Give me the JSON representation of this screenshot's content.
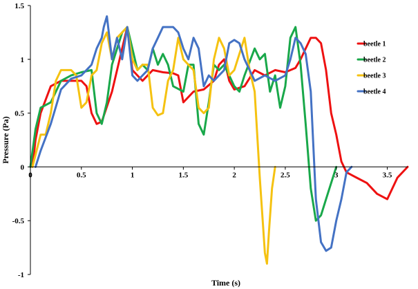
{
  "chart_data": {
    "type": "line",
    "title": "",
    "xlabel": "Time (s)",
    "ylabel": "Pressure (Pa)",
    "xlim": [
      0,
      3.7
    ],
    "ylim": [
      -1,
      1.5
    ],
    "x_ticks": [
      0,
      0.5,
      1,
      1.5,
      2,
      2.5,
      3,
      3.5
    ],
    "y_ticks": [
      -1,
      -0.5,
      0,
      0.5,
      1,
      1.5
    ],
    "x_tick_labels": [
      "0",
      "0.5",
      "1",
      "1.5",
      "2",
      "2.5",
      "3",
      "3.5"
    ],
    "y_tick_labels": [
      "-1",
      "-0.5",
      "0",
      "0.5",
      "1",
      "1.5"
    ],
    "grid": false,
    "legend_position": "right",
    "series": [
      {
        "name": "beetle 1",
        "color": "#ee1111",
        "points": [
          [
            0.02,
            0
          ],
          [
            0.05,
            0.25
          ],
          [
            0.1,
            0.5
          ],
          [
            0.2,
            0.75
          ],
          [
            0.3,
            0.8
          ],
          [
            0.5,
            0.8
          ],
          [
            0.55,
            0.75
          ],
          [
            0.6,
            0.5
          ],
          [
            0.65,
            0.4
          ],
          [
            0.7,
            0.42
          ],
          [
            0.8,
            0.7
          ],
          [
            0.9,
            1.1
          ],
          [
            0.95,
            1.3
          ],
          [
            1.0,
            0.9
          ],
          [
            1.1,
            0.8
          ],
          [
            1.2,
            0.9
          ],
          [
            1.3,
            0.88
          ],
          [
            1.4,
            0.87
          ],
          [
            1.45,
            0.85
          ],
          [
            1.5,
            0.6
          ],
          [
            1.6,
            0.7
          ],
          [
            1.7,
            0.72
          ],
          [
            1.8,
            0.8
          ],
          [
            1.85,
            0.95
          ],
          [
            1.9,
            1.0
          ],
          [
            1.95,
            0.8
          ],
          [
            2.0,
            0.72
          ],
          [
            2.1,
            0.75
          ],
          [
            2.2,
            0.9
          ],
          [
            2.3,
            0.85
          ],
          [
            2.4,
            0.9
          ],
          [
            2.5,
            0.88
          ],
          [
            2.6,
            0.92
          ],
          [
            2.65,
            1.0
          ],
          [
            2.7,
            1.1
          ],
          [
            2.75,
            1.2
          ],
          [
            2.8,
            1.2
          ],
          [
            2.85,
            1.15
          ],
          [
            2.9,
            0.9
          ],
          [
            2.95,
            0.5
          ],
          [
            3.0,
            0.3
          ],
          [
            3.05,
            0.05
          ],
          [
            3.1,
            -0.05
          ],
          [
            3.2,
            -0.1
          ],
          [
            3.3,
            -0.15
          ],
          [
            3.4,
            -0.25
          ],
          [
            3.5,
            -0.3
          ],
          [
            3.55,
            -0.2
          ],
          [
            3.6,
            -0.1
          ],
          [
            3.7,
            0
          ]
        ]
      },
      {
        "name": "beetle 2",
        "color": "#19a84a",
        "points": [
          [
            0,
            0
          ],
          [
            0.05,
            0.35
          ],
          [
            0.1,
            0.55
          ],
          [
            0.2,
            0.6
          ],
          [
            0.25,
            0.7
          ],
          [
            0.3,
            0.8
          ],
          [
            0.4,
            0.85
          ],
          [
            0.5,
            0.88
          ],
          [
            0.6,
            0.9
          ],
          [
            0.65,
            0.5
          ],
          [
            0.7,
            0.4
          ],
          [
            0.75,
            0.6
          ],
          [
            0.8,
            0.95
          ],
          [
            0.9,
            1.25
          ],
          [
            0.95,
            1.3
          ],
          [
            1.0,
            1.1
          ],
          [
            1.05,
            0.9
          ],
          [
            1.1,
            0.95
          ],
          [
            1.15,
            0.9
          ],
          [
            1.2,
            1.1
          ],
          [
            1.25,
            0.95
          ],
          [
            1.3,
            1.05
          ],
          [
            1.35,
            0.95
          ],
          [
            1.4,
            0.75
          ],
          [
            1.5,
            0.7
          ],
          [
            1.55,
            0.95
          ],
          [
            1.6,
            0.95
          ],
          [
            1.65,
            0.4
          ],
          [
            1.7,
            0.3
          ],
          [
            1.75,
            0.6
          ],
          [
            1.8,
            0.95
          ],
          [
            1.85,
            0.9
          ],
          [
            1.9,
            0.95
          ],
          [
            1.95,
            0.85
          ],
          [
            2.0,
            0.75
          ],
          [
            2.05,
            0.7
          ],
          [
            2.1,
            0.85
          ],
          [
            2.2,
            1.1
          ],
          [
            2.25,
            1.0
          ],
          [
            2.3,
            1.05
          ],
          [
            2.35,
            0.7
          ],
          [
            2.4,
            0.85
          ],
          [
            2.45,
            0.55
          ],
          [
            2.5,
            0.75
          ],
          [
            2.55,
            1.2
          ],
          [
            2.6,
            1.3
          ],
          [
            2.65,
            0.95
          ],
          [
            2.7,
            0.4
          ],
          [
            2.75,
            -0.2
          ],
          [
            2.8,
            -0.5
          ],
          [
            2.85,
            -0.45
          ],
          [
            2.9,
            -0.3
          ],
          [
            2.95,
            -0.15
          ],
          [
            3.0,
            0
          ]
        ]
      },
      {
        "name": "beetle 3",
        "color": "#f5c211",
        "points": [
          [
            0.02,
            0
          ],
          [
            0.1,
            0.3
          ],
          [
            0.15,
            0.3
          ],
          [
            0.2,
            0.5
          ],
          [
            0.25,
            0.8
          ],
          [
            0.3,
            0.9
          ],
          [
            0.4,
            0.9
          ],
          [
            0.45,
            0.85
          ],
          [
            0.5,
            0.55
          ],
          [
            0.55,
            0.6
          ],
          [
            0.6,
            0.85
          ],
          [
            0.65,
            0.9
          ],
          [
            0.7,
            1.15
          ],
          [
            0.75,
            1.25
          ],
          [
            0.8,
            1.0
          ],
          [
            0.85,
            1.2
          ],
          [
            0.9,
            1.25
          ],
          [
            0.95,
            1.3
          ],
          [
            1.0,
            1.0
          ],
          [
            1.05,
            0.9
          ],
          [
            1.1,
            0.95
          ],
          [
            1.15,
            0.95
          ],
          [
            1.2,
            0.55
          ],
          [
            1.25,
            0.48
          ],
          [
            1.3,
            0.5
          ],
          [
            1.35,
            0.8
          ],
          [
            1.4,
            0.9
          ],
          [
            1.45,
            1.2
          ],
          [
            1.5,
            1.0
          ],
          [
            1.55,
            0.95
          ],
          [
            1.6,
            0.9
          ],
          [
            1.65,
            0.55
          ],
          [
            1.7,
            0.5
          ],
          [
            1.75,
            0.55
          ],
          [
            1.8,
            1.0
          ],
          [
            1.85,
            1.2
          ],
          [
            1.9,
            1.1
          ],
          [
            1.95,
            0.85
          ],
          [
            2.0,
            0.9
          ],
          [
            2.05,
            1.05
          ],
          [
            2.1,
            1.2
          ],
          [
            2.15,
            0.9
          ],
          [
            2.2,
            0.7
          ],
          [
            2.25,
            -0.1
          ],
          [
            2.3,
            -0.8
          ],
          [
            2.32,
            -0.9
          ],
          [
            2.34,
            -0.6
          ],
          [
            2.37,
            -0.2
          ],
          [
            2.4,
            0
          ]
        ]
      },
      {
        "name": "beetle 4",
        "color": "#4472c4",
        "points": [
          [
            0.05,
            0
          ],
          [
            0.1,
            0.15
          ],
          [
            0.2,
            0.4
          ],
          [
            0.3,
            0.72
          ],
          [
            0.4,
            0.82
          ],
          [
            0.5,
            0.85
          ],
          [
            0.6,
            0.95
          ],
          [
            0.65,
            1.1
          ],
          [
            0.7,
            1.2
          ],
          [
            0.72,
            1.3
          ],
          [
            0.75,
            1.4
          ],
          [
            0.8,
            1.0
          ],
          [
            0.85,
            1.2
          ],
          [
            0.9,
            1.0
          ],
          [
            0.95,
            1.3
          ],
          [
            1.0,
            0.85
          ],
          [
            1.05,
            0.8
          ],
          [
            1.1,
            0.85
          ],
          [
            1.15,
            0.9
          ],
          [
            1.2,
            1.1
          ],
          [
            1.25,
            1.2
          ],
          [
            1.3,
            1.3
          ],
          [
            1.4,
            1.3
          ],
          [
            1.45,
            1.25
          ],
          [
            1.5,
            1.1
          ],
          [
            1.55,
            1.0
          ],
          [
            1.6,
            1.2
          ],
          [
            1.65,
            1.1
          ],
          [
            1.7,
            0.75
          ],
          [
            1.75,
            0.85
          ],
          [
            1.8,
            0.8
          ],
          [
            1.85,
            0.85
          ],
          [
            1.9,
            0.9
          ],
          [
            1.95,
            1.15
          ],
          [
            2.0,
            1.18
          ],
          [
            2.05,
            1.15
          ],
          [
            2.1,
            1.0
          ],
          [
            2.15,
            0.9
          ],
          [
            2.2,
            0.8
          ],
          [
            2.3,
            0.85
          ],
          [
            2.4,
            0.8
          ],
          [
            2.5,
            0.85
          ],
          [
            2.55,
            1.0
          ],
          [
            2.6,
            1.2
          ],
          [
            2.65,
            1.15
          ],
          [
            2.7,
            1.05
          ],
          [
            2.75,
            0.7
          ],
          [
            2.8,
            -0.3
          ],
          [
            2.85,
            -0.7
          ],
          [
            2.9,
            -0.78
          ],
          [
            2.95,
            -0.75
          ],
          [
            3.0,
            -0.5
          ],
          [
            3.05,
            -0.3
          ],
          [
            3.1,
            -0.05
          ],
          [
            3.15,
            0
          ]
        ]
      }
    ]
  }
}
